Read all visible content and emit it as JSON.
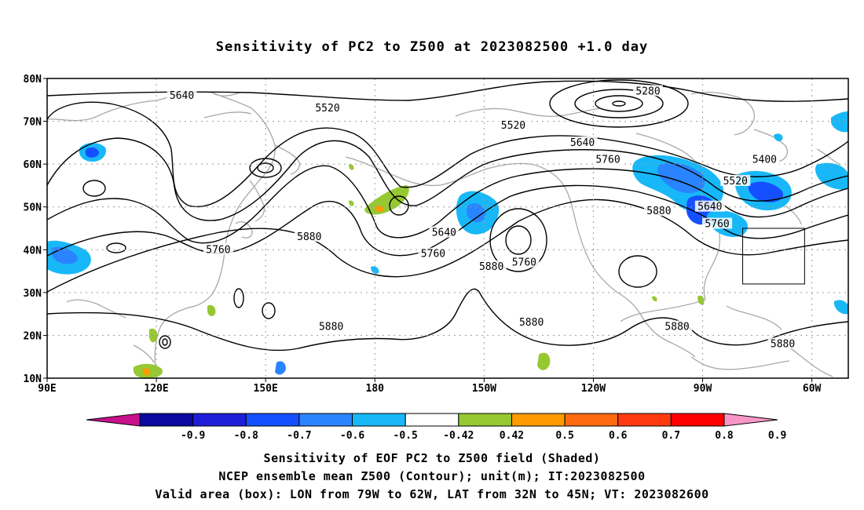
{
  "title": "Sensitivity of PC2 to Z500 at 2023082500 +1.0 day",
  "axes": {
    "lat_labels": [
      "80N",
      "70N",
      "60N",
      "50N",
      "40N",
      "30N",
      "20N",
      "10N"
    ],
    "lon_labels": [
      "90E",
      "120E",
      "150E",
      "180",
      "150W",
      "120W",
      "90W",
      "60W"
    ],
    "lon_range": [
      90,
      310
    ],
    "lat_range": [
      10,
      80
    ]
  },
  "colorbar": {
    "labels": [
      "-0.9",
      "-0.8",
      "-0.7",
      "-0.6",
      "-0.5",
      "-0.42",
      "0.42",
      "0.5",
      "0.6",
      "0.7",
      "0.8",
      "0.9"
    ],
    "colors": [
      "#c8108c",
      "#0a0aa0",
      "#1e1ed8",
      "#1450ff",
      "#2a84ff",
      "#18b8f8",
      "#ffffff",
      "#96c832",
      "#ff9a00",
      "#ff6a10",
      "#ff3a10",
      "#ff0000",
      "#f896c8"
    ]
  },
  "contour_labels": [
    {
      "text": "5640",
      "lon": 127,
      "lat": 76
    },
    {
      "text": "5520",
      "lon": 167,
      "lat": 73
    },
    {
      "text": "5280",
      "lon": 255,
      "lat": 77
    },
    {
      "text": "5520",
      "lon": 218,
      "lat": 69
    },
    {
      "text": "5640",
      "lon": 237,
      "lat": 65
    },
    {
      "text": "5760",
      "lon": 244,
      "lat": 61
    },
    {
      "text": "5400",
      "lon": 287,
      "lat": 61
    },
    {
      "text": "5520",
      "lon": 279,
      "lat": 56
    },
    {
      "text": "5640",
      "lon": 272,
      "lat": 50
    },
    {
      "text": "5760",
      "lon": 274,
      "lat": 46
    },
    {
      "text": "5880",
      "lon": 162,
      "lat": 43
    },
    {
      "text": "5640",
      "lon": 199,
      "lat": 44
    },
    {
      "text": "5760",
      "lon": 196,
      "lat": 39
    },
    {
      "text": "5880",
      "lon": 212,
      "lat": 36
    },
    {
      "text": "5760",
      "lon": 221,
      "lat": 37
    },
    {
      "text": "5760",
      "lon": 137,
      "lat": 40
    },
    {
      "text": "5880",
      "lon": 258,
      "lat": 49
    },
    {
      "text": "5880",
      "lon": 168,
      "lat": 22
    },
    {
      "text": "5880",
      "lon": 223,
      "lat": 23
    },
    {
      "text": "5880",
      "lon": 263,
      "lat": 22
    },
    {
      "text": "5880",
      "lon": 292,
      "lat": 18
    }
  ],
  "valid_box": {
    "lon_min": 281,
    "lon_max": 298,
    "lat_min": 32,
    "lat_max": 45
  },
  "captions": {
    "line1": "Sensitivity of EOF PC2 to Z500 field (Shaded)",
    "line2": "NCEP ensemble mean Z500 (Contour); unit(m); IT:2023082500",
    "line3": "Valid area (box): LON from 79W to 62W, LAT from 32N to 45N; VT: 2023082600"
  }
}
